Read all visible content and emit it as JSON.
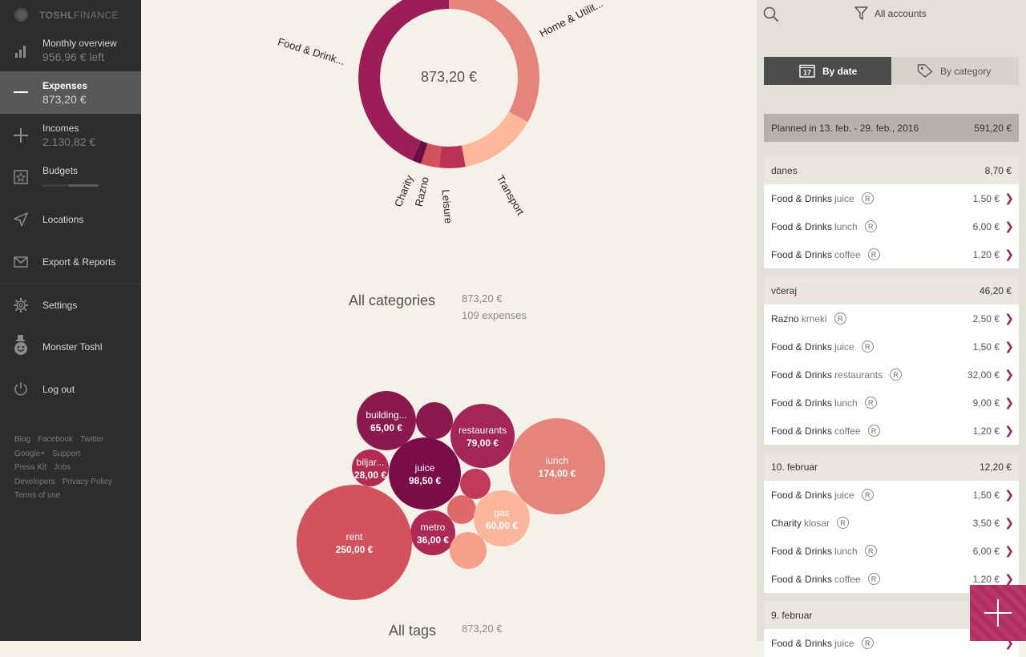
{
  "brand": {
    "bold": "TOSHL",
    "light": "FINANCE"
  },
  "nav": [
    {
      "label": "Monthly overview",
      "sub": "956,96 € left",
      "icon": "bar-chart-icon"
    },
    {
      "label": "Expenses",
      "sub": "873,20 €",
      "icon": "minus-icon",
      "active": true
    },
    {
      "label": "Incomes",
      "sub": "2.130,82 €",
      "icon": "plus-icon"
    },
    {
      "label": "Budgets",
      "sub": "",
      "icon": "budget-icon",
      "progress": 0.47
    },
    {
      "label": "Locations",
      "sub": "",
      "icon": "location-arrow-icon"
    },
    {
      "label": "Export & Reports",
      "sub": "",
      "icon": "envelope-icon"
    },
    {
      "label": "Settings",
      "sub": "",
      "icon": "gear-icon"
    },
    {
      "label": "Monster Toshl",
      "sub": "",
      "icon": "monster-icon"
    },
    {
      "label": "Log out",
      "sub": "",
      "icon": "power-icon"
    }
  ],
  "footer_links": [
    "Blog",
    "Facebook",
    "Twitter",
    "Google+",
    "Support",
    "Press Kit",
    "Jobs",
    "Developers",
    "Privacy Policy",
    "Terms of use"
  ],
  "donut": {
    "total": "873,20 €",
    "labels": [
      "Food & Drink...",
      "Home & Utilit...",
      "Charity",
      "Razno",
      "Leisure",
      "Transport"
    ]
  },
  "categories_summary": {
    "title": "All categories",
    "amount": "873,20 €",
    "count": "109 expenses"
  },
  "tags_summary": {
    "title": "All tags",
    "amount": "873,20 €"
  },
  "bubbles": [
    {
      "name": "building...",
      "value": "65,00 €"
    },
    {
      "name": "restaurants",
      "value": "79,00 €"
    },
    {
      "name": "biljar...",
      "value": "28,00 €"
    },
    {
      "name": "juice",
      "value": "98,50 €"
    },
    {
      "name": "lunch",
      "value": "174,00 €"
    },
    {
      "name": "gas",
      "value": "60,00 €"
    },
    {
      "name": "metro",
      "value": "36,00 €"
    },
    {
      "name": "rent",
      "value": "250,00 €"
    }
  ],
  "panel": {
    "filter_label": "All accounts",
    "seg_date": "By date",
    "seg_date_day": "17",
    "seg_category": "By category",
    "planned_label": "Planned in 13. feb. - 29. feb., 2016",
    "planned_amount": "591,20 €",
    "groups": [
      {
        "title": "danes",
        "total": "8,70 €",
        "rows": [
          {
            "cat": "Food & Drinks",
            "tag": "juice",
            "amt": "1,50 €"
          },
          {
            "cat": "Food & Drinks",
            "tag": "lunch",
            "amt": "6,00 €"
          },
          {
            "cat": "Food & Drinks",
            "tag": "coffee",
            "amt": "1,20 €"
          }
        ]
      },
      {
        "title": "včeraj",
        "total": "46,20 €",
        "rows": [
          {
            "cat": "Razno",
            "tag": "krneki",
            "amt": "2,50 €"
          },
          {
            "cat": "Food & Drinks",
            "tag": "juice",
            "amt": "1,50 €"
          },
          {
            "cat": "Food & Drinks",
            "tag": "restaurants",
            "amt": "32,00 €"
          },
          {
            "cat": "Food & Drinks",
            "tag": "lunch",
            "amt": "9,00 €"
          },
          {
            "cat": "Food & Drinks",
            "tag": "coffee",
            "amt": "1,20 €"
          }
        ]
      },
      {
        "title": "10. februar",
        "total": "12,20 €",
        "rows": [
          {
            "cat": "Food & Drinks",
            "tag": "juice",
            "amt": "1,50 €"
          },
          {
            "cat": "Charity",
            "tag": "klosar",
            "amt": "3,50 €"
          },
          {
            "cat": "Food & Drinks",
            "tag": "lunch",
            "amt": "6,00 €"
          },
          {
            "cat": "Food & Drinks",
            "tag": "coffee",
            "amt": "1,20 €"
          }
        ]
      },
      {
        "title": "9. februar",
        "total": "",
        "rows": [
          {
            "cat": "Food & Drinks",
            "tag": "juice",
            "amt": ""
          }
        ]
      }
    ],
    "recurring_symbol": "R"
  },
  "colors": {
    "accent": "#b22d5e",
    "sidebar": "#2d2d2d",
    "background": "#f3f1e8",
    "panel": "#e3e1d6"
  }
}
